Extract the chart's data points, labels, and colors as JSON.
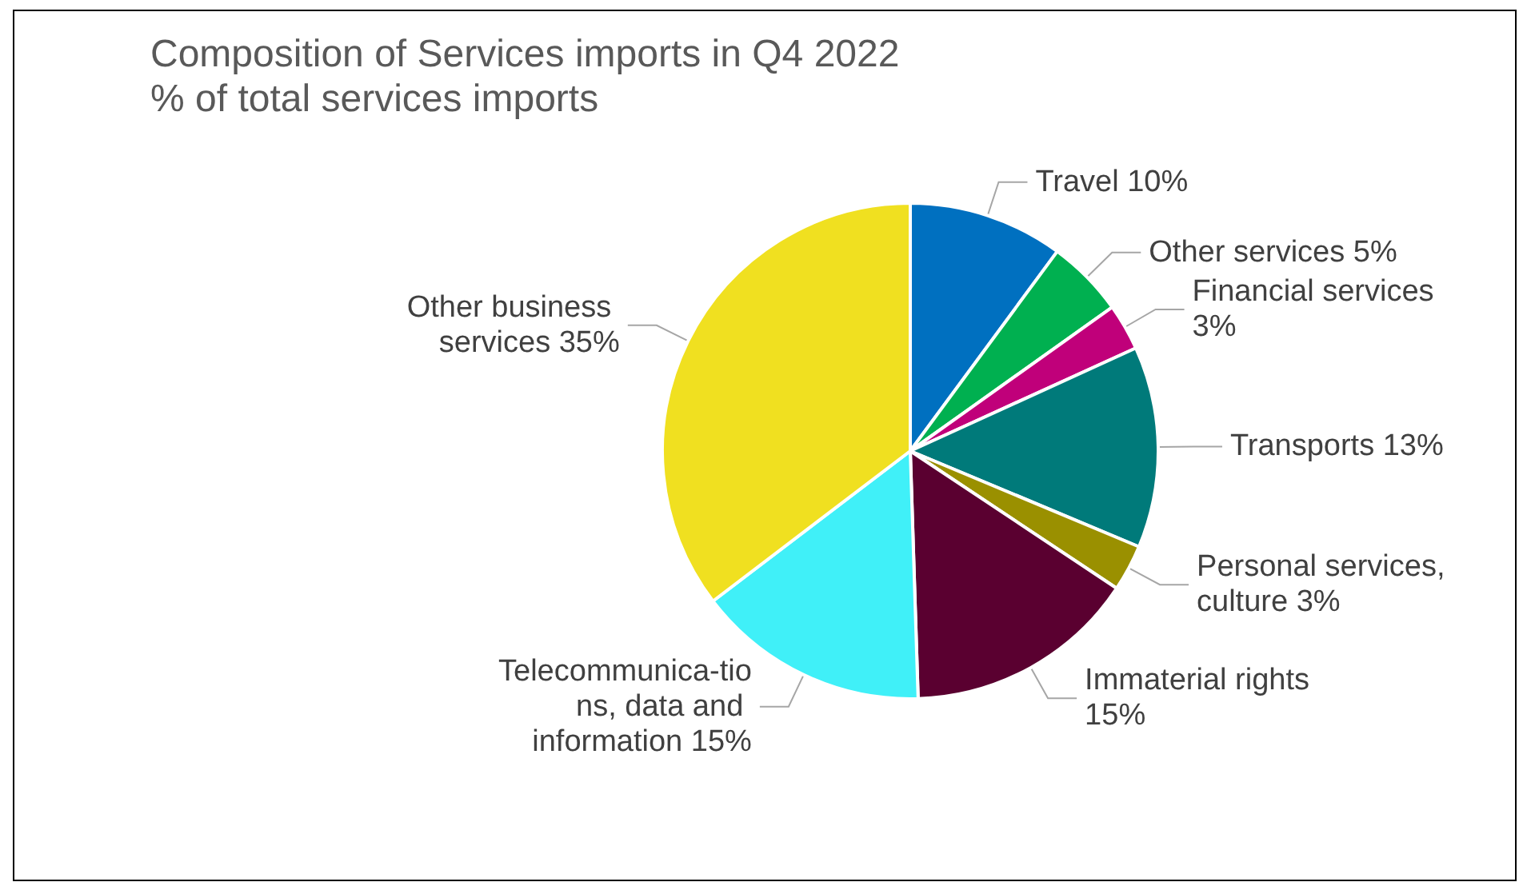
{
  "chart_data": {
    "type": "pie",
    "title": "Composition of Services imports in Q4 2022",
    "subtitle": "% of total services imports",
    "categories": [
      "Travel",
      "Other services",
      "Financial services",
      "Transports",
      "Personal services, culture",
      "Immaterial rights",
      "Telecommunica-tions, data and information",
      "Other business services"
    ],
    "values": [
      10,
      5,
      3,
      13,
      3,
      15,
      15,
      35
    ],
    "value_labels": [
      "10%",
      "5%",
      "3%",
      "13%",
      "3%",
      "15%",
      "15%",
      "35%"
    ],
    "colors": [
      "#0070c0",
      "#00b050",
      "#c0007a",
      "#007a7a",
      "#9a9000",
      "#5a0030",
      "#40f0f8",
      "#f0e020"
    ],
    "legend": false
  }
}
